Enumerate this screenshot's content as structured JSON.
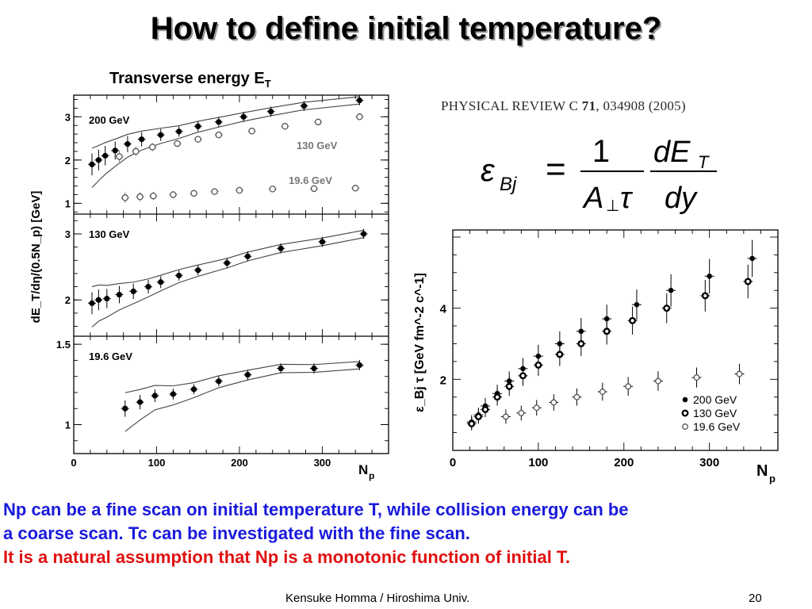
{
  "slide": {
    "title": "How to define initial temperature?",
    "left_heading": "Transverse energy E",
    "left_heading_sub": "T",
    "journal_ref_prefix": "PHYSICAL REVIEW C ",
    "journal_ref_volume": "71",
    "journal_ref_suffix": ", 034908 (2005)",
    "caption_line1": "Np can be a fine scan on initial temperature T, while collision energy can be",
    "caption_line2": "a coarse scan. Tc can be investigated with the fine scan.",
    "caption_line3": "It is a natural assumption that Np is a monotonic function of initial T.",
    "footer_credit": "Kensuke Homma / Hiroshima Univ.",
    "page_number": "20",
    "colors": {
      "blue_text": "#1a1adb",
      "red_text": "#e01010"
    }
  },
  "formula": {
    "lhs": "ε",
    "lhs_sub": "Bj",
    "equals": "=",
    "numerator_1": "1",
    "denominator_1": "A",
    "denominator_1_sub": "⊥",
    "denominator_1_tail": "τ",
    "numerator_2": "dE",
    "numerator_2_sub": "T",
    "denominator_2": "dy"
  },
  "chart_data": [
    {
      "type": "scatter",
      "panel": "200 GeV",
      "labels": [
        "200 GeV",
        "130 GeV",
        "19.6 GeV"
      ],
      "ylabel": "dE_T/dη/(0.5N_p) [GeV]",
      "ylim": [
        0.75,
        3.5
      ],
      "yticks": [
        1,
        2,
        3
      ],
      "series": [
        {
          "name": "200 GeV",
          "marker": "filled",
          "x": [
            22,
            30,
            38,
            50,
            65,
            82,
            105,
            127,
            150,
            175,
            205,
            238,
            278,
            345
          ],
          "y": [
            1.9,
            2.0,
            2.1,
            2.22,
            2.37,
            2.48,
            2.58,
            2.66,
            2.78,
            2.88,
            3.0,
            3.12,
            3.25,
            3.38
          ]
        },
        {
          "name": "130 GeV",
          "marker": "open",
          "x": [
            55,
            75,
            95,
            125,
            150,
            175,
            215,
            255,
            295,
            345
          ],
          "y": [
            2.08,
            2.2,
            2.3,
            2.38,
            2.48,
            2.58,
            2.67,
            2.78,
            2.88,
            3.0
          ]
        },
        {
          "name": "19.6 GeV",
          "marker": "open",
          "x": [
            62,
            80,
            96,
            120,
            145,
            170,
            200,
            240,
            290,
            340
          ],
          "y": [
            1.13,
            1.15,
            1.17,
            1.2,
            1.23,
            1.27,
            1.3,
            1.33,
            1.34,
            1.35
          ]
        }
      ]
    },
    {
      "type": "scatter",
      "panel": "130 GeV",
      "labels": [
        "130 GeV"
      ],
      "ylim": [
        1.45,
        3.3
      ],
      "yticks": [
        2,
        3
      ],
      "series": [
        {
          "name": "130 GeV",
          "marker": "filled",
          "x": [
            22,
            30,
            40,
            55,
            72,
            90,
            105,
            127,
            150,
            185,
            210,
            250,
            300,
            350
          ],
          "y": [
            1.95,
            2.0,
            2.02,
            2.08,
            2.13,
            2.2,
            2.27,
            2.37,
            2.45,
            2.56,
            2.66,
            2.78,
            2.88,
            3.0
          ]
        }
      ]
    },
    {
      "type": "scatter",
      "panel": "19.6 GeV",
      "labels": [
        "19.6 GeV"
      ],
      "xlabel": "N",
      "xlabel_sub": "p",
      "xlim": [
        0,
        380
      ],
      "xticks": [
        0,
        100,
        200,
        300
      ],
      "ylim": [
        0.82,
        1.55
      ],
      "yticks": [
        1,
        1.5
      ],
      "series": [
        {
          "name": "19.6 GeV",
          "marker": "filled",
          "x": [
            62,
            80,
            98,
            120,
            145,
            175,
            210,
            250,
            290,
            345
          ],
          "y": [
            1.1,
            1.14,
            1.18,
            1.19,
            1.22,
            1.27,
            1.31,
            1.35,
            1.35,
            1.37
          ]
        }
      ]
    },
    {
      "type": "scatter",
      "ylabel": "ε_Bj τ [GeV fm^-2 c^-1]",
      "xlabel": "N",
      "xlabel_sub": "p",
      "xlim": [
        0,
        380
      ],
      "xticks": [
        0,
        100,
        200,
        300
      ],
      "ylim": [
        0,
        6.2
      ],
      "yticks": [
        2,
        4
      ],
      "legend": "bottom-right",
      "series": [
        {
          "name": "200 GeV",
          "marker": "filled",
          "x": [
            22,
            30,
            38,
            52,
            66,
            82,
            100,
            125,
            150,
            180,
            215,
            255,
            300,
            350
          ],
          "y": [
            0.8,
            1.0,
            1.25,
            1.6,
            1.95,
            2.3,
            2.65,
            3.0,
            3.35,
            3.7,
            4.1,
            4.5,
            4.9,
            5.4
          ]
        },
        {
          "name": "130 GeV",
          "marker": "ring",
          "x": [
            22,
            30,
            38,
            52,
            66,
            82,
            100,
            125,
            150,
            180,
            210,
            250,
            295,
            345
          ],
          "y": [
            0.75,
            0.95,
            1.15,
            1.5,
            1.8,
            2.1,
            2.4,
            2.7,
            3.0,
            3.35,
            3.65,
            4.0,
            4.35,
            4.75
          ]
        },
        {
          "name": "19.6 GeV",
          "marker": "open",
          "x": [
            62,
            80,
            98,
            118,
            145,
            175,
            205,
            240,
            285,
            335
          ],
          "y": [
            0.95,
            1.05,
            1.2,
            1.35,
            1.5,
            1.65,
            1.8,
            1.95,
            2.05,
            2.15
          ]
        }
      ]
    }
  ]
}
